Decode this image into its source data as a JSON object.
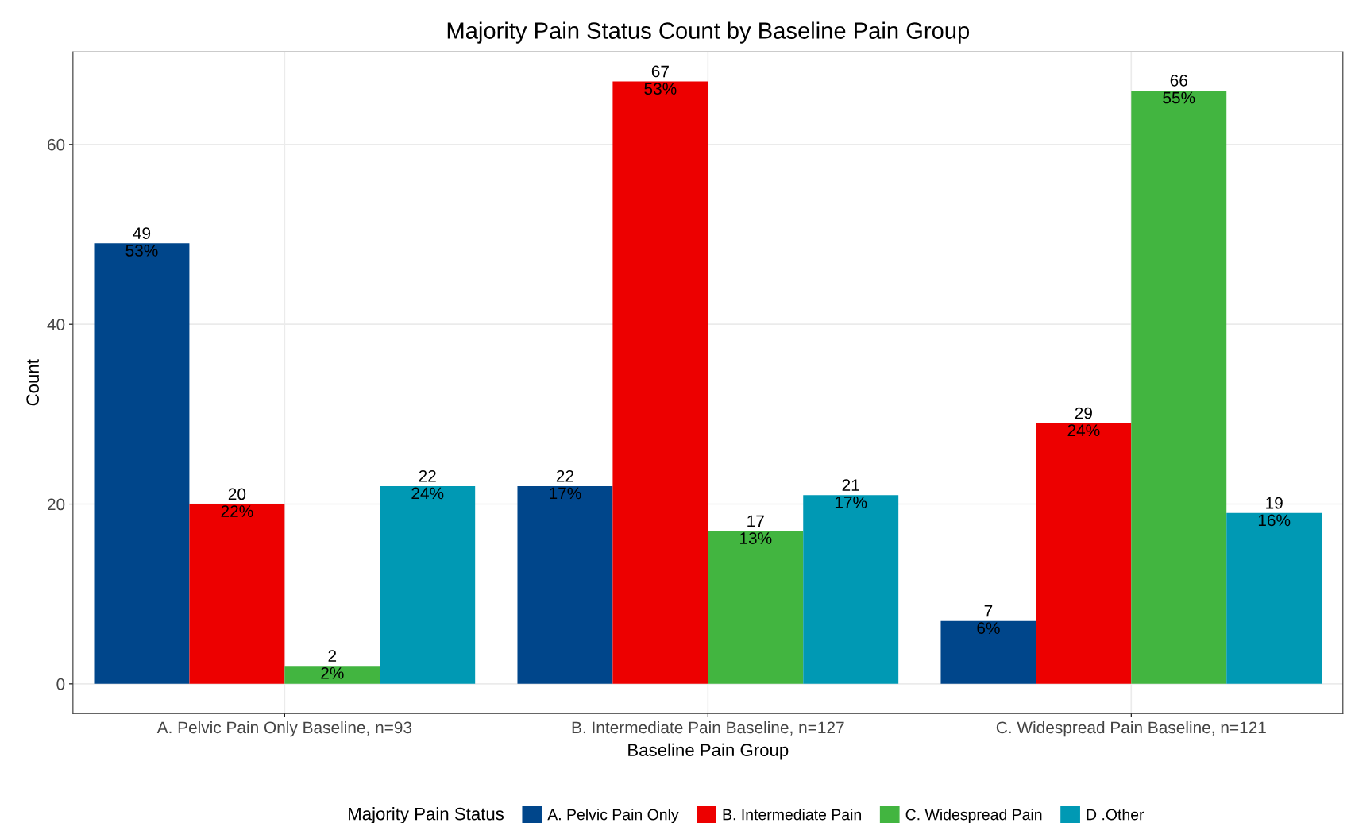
{
  "chart_data": {
    "type": "bar",
    "title": "Majority Pain Status Count by Baseline Pain Group",
    "xlabel": "Baseline Pain Group",
    "ylabel": "Count",
    "legend_title": "Majority Pain Status",
    "categories": [
      "A. Pelvic Pain Only Baseline, n=93",
      "B. Intermediate Pain Baseline, n=127",
      "C. Widespread Pain Baseline, n=121"
    ],
    "series": [
      {
        "name": "A. Pelvic Pain Only",
        "color": "#00468b",
        "values": [
          49,
          22,
          7
        ],
        "value_labels": [
          "49\n53%",
          "22\n17%",
          "7\n6%"
        ]
      },
      {
        "name": "B. Intermediate Pain",
        "color": "#ed0000",
        "values": [
          20,
          67,
          29
        ],
        "value_labels": [
          "20\n22%",
          "67\n53%",
          "29\n24%"
        ]
      },
      {
        "name": "C. Widespread Pain",
        "color": "#42b540",
        "values": [
          2,
          17,
          66
        ],
        "value_labels": [
          "2\n2%",
          "17\n13%",
          "66\n55%"
        ]
      },
      {
        "name": "D .Other",
        "color": "#0099b4",
        "values": [
          22,
          21,
          19
        ],
        "value_labels": [
          "22\n24%",
          "21\n17%",
          "19\n16%"
        ]
      }
    ],
    "ylim": [
      -3.3,
      70.3
    ],
    "yticks": [
      0,
      20,
      40,
      60
    ],
    "grid": true,
    "legend": "bottom"
  }
}
